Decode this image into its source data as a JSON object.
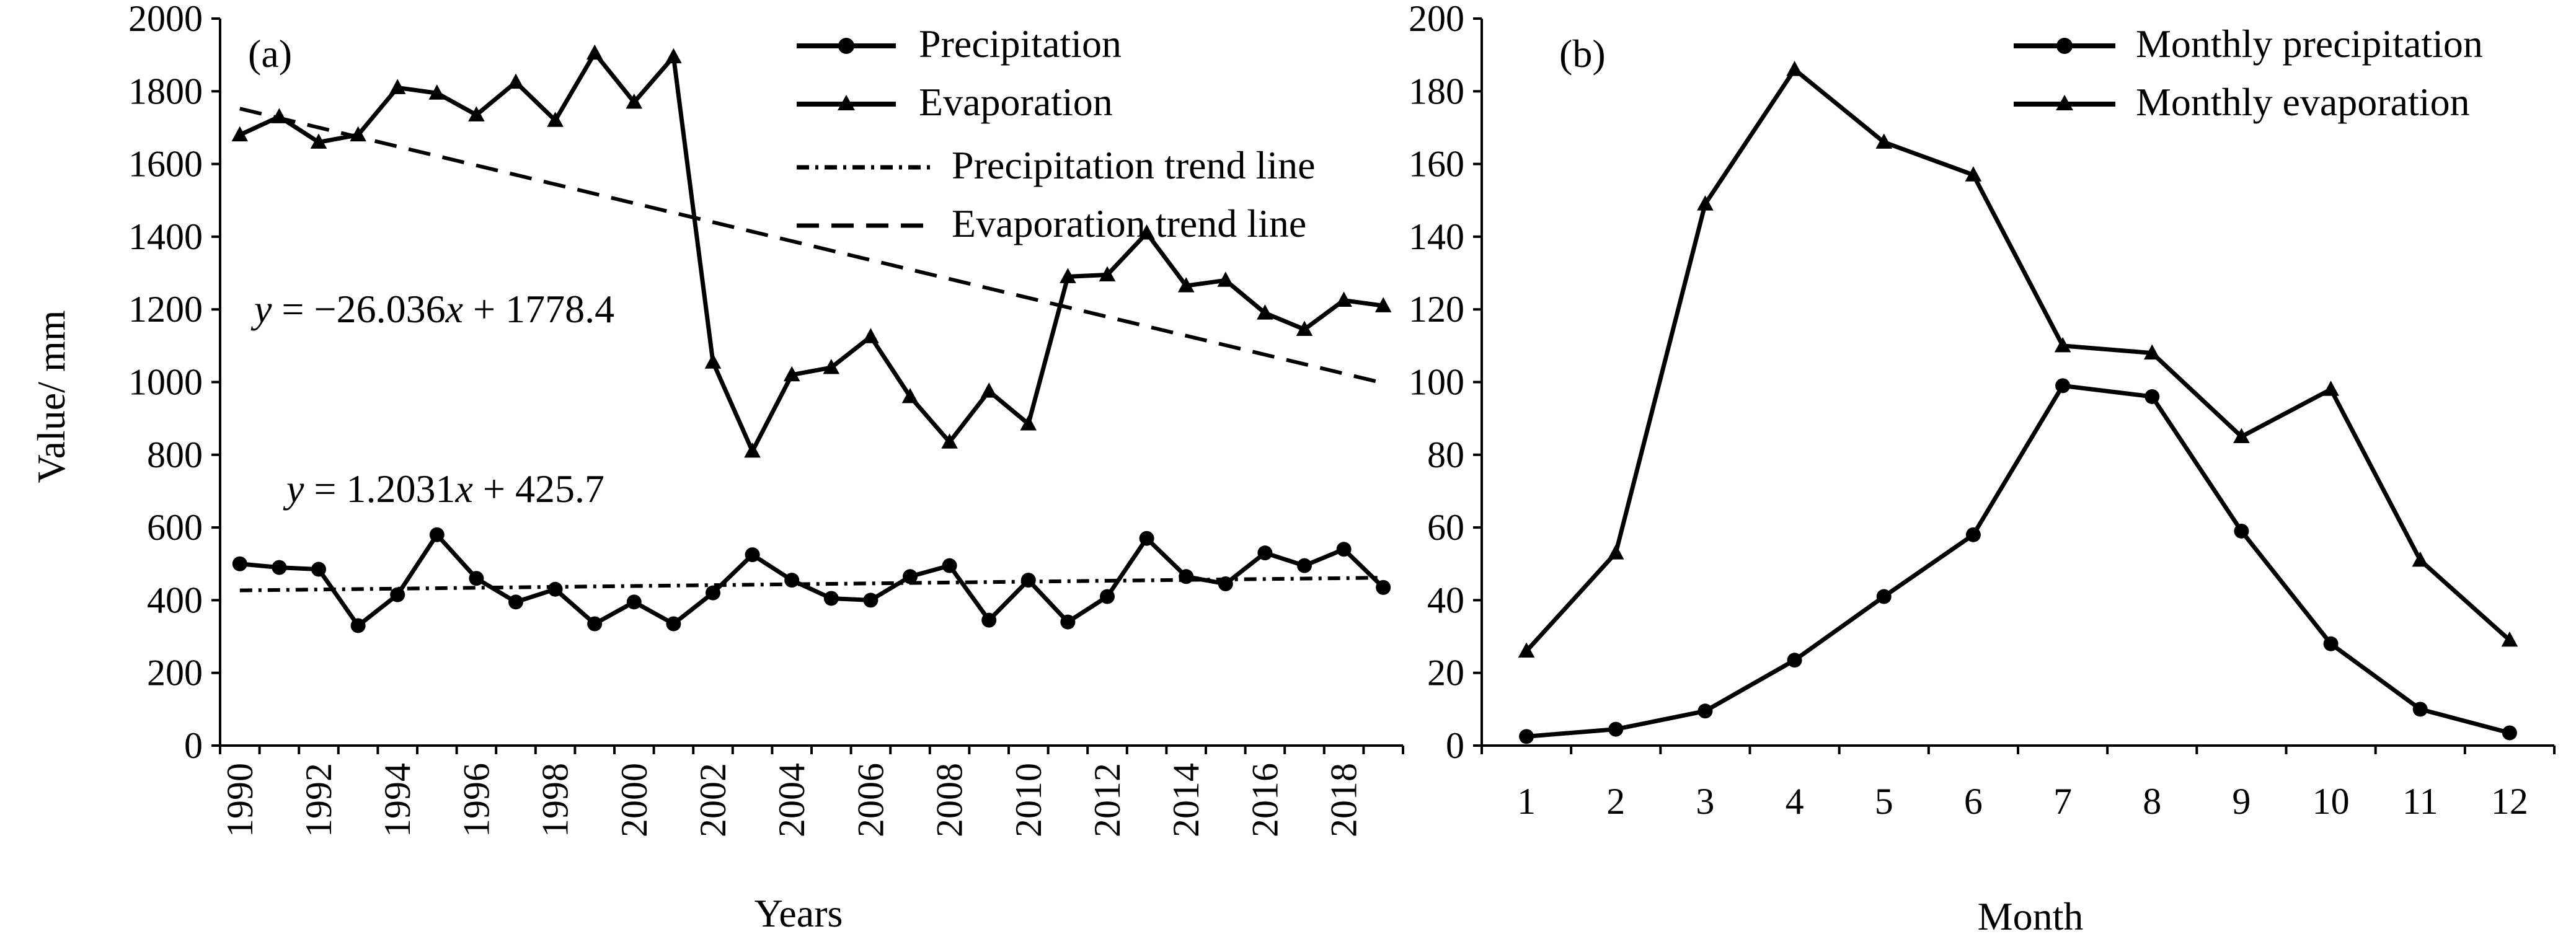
{
  "chart_data": [
    {
      "panel_label": "(a)",
      "type": "line",
      "xlabel": "Years",
      "ylabel": "Value/ mm",
      "ylim": [
        0,
        2000
      ],
      "yticks": [
        0,
        200,
        400,
        600,
        800,
        1000,
        1200,
        1400,
        1600,
        1800,
        2000
      ],
      "xlim": [
        1990,
        2019
      ],
      "xticks": [
        1990,
        1992,
        1994,
        1996,
        1998,
        2000,
        2002,
        2004,
        2006,
        2008,
        2010,
        2012,
        2014,
        2016,
        2018
      ],
      "x": [
        1990,
        1991,
        1992,
        1993,
        1994,
        1995,
        1996,
        1997,
        1998,
        1999,
        2000,
        2001,
        2002,
        2003,
        2004,
        2005,
        2006,
        2007,
        2008,
        2009,
        2010,
        2011,
        2012,
        2013,
        2014,
        2015,
        2016,
        2017,
        2018,
        2019
      ],
      "series": [
        {
          "name": "Precipitation",
          "marker": "circle",
          "values": [
            500,
            490,
            485,
            330,
            415,
            580,
            460,
            395,
            430,
            335,
            395,
            335,
            420,
            525,
            455,
            405,
            400,
            465,
            495,
            345,
            455,
            340,
            410,
            570,
            465,
            445,
            530,
            495,
            540,
            435
          ]
        },
        {
          "name": "Evaporation",
          "marker": "triangle",
          "values": [
            1680,
            1730,
            1660,
            1680,
            1810,
            1795,
            1735,
            1825,
            1720,
            1905,
            1770,
            1895,
            1055,
            810,
            1020,
            1040,
            1125,
            960,
            835,
            975,
            885,
            1290,
            1295,
            1410,
            1265,
            1280,
            1190,
            1145,
            1225,
            1210
          ]
        }
      ],
      "trend_lines": [
        {
          "name": "Precipitation trend line",
          "style": "dash-dot",
          "slope": 1.2031,
          "intercept": 425.7,
          "equation_prefix": "y",
          "equation_text": " = 1.2031",
          "equation_var": "x",
          "equation_tail": " + 425.7"
        },
        {
          "name": "Evaporation trend line",
          "style": "dashed",
          "slope": -26.036,
          "intercept": 1778.4,
          "equation_prefix": "y",
          "equation_text": " = −26.036",
          "equation_var": "x",
          "equation_tail": " + 1778.4"
        }
      ],
      "legend_position": "top-right"
    },
    {
      "panel_label": "(b)",
      "type": "line",
      "xlabel": "Month",
      "ylabel": "",
      "ylim": [
        0,
        200
      ],
      "yticks": [
        0,
        20,
        40,
        60,
        80,
        100,
        120,
        140,
        160,
        180,
        200
      ],
      "categories": [
        "1",
        "2",
        "3",
        "4",
        "5",
        "6",
        "7",
        "8",
        "9",
        "10",
        "11",
        "12"
      ],
      "series": [
        {
          "name": "Monthly precipitation",
          "marker": "circle",
          "values": [
            2.5,
            4.5,
            9.5,
            23.5,
            41,
            58,
            99,
            96,
            59,
            28,
            10,
            3.5
          ]
        },
        {
          "name": "Monthly evaporation",
          "marker": "triangle",
          "values": [
            26,
            53,
            149,
            186,
            166,
            157,
            110,
            108,
            85,
            98,
            51,
            29
          ]
        }
      ],
      "legend_position": "top-right"
    }
  ]
}
